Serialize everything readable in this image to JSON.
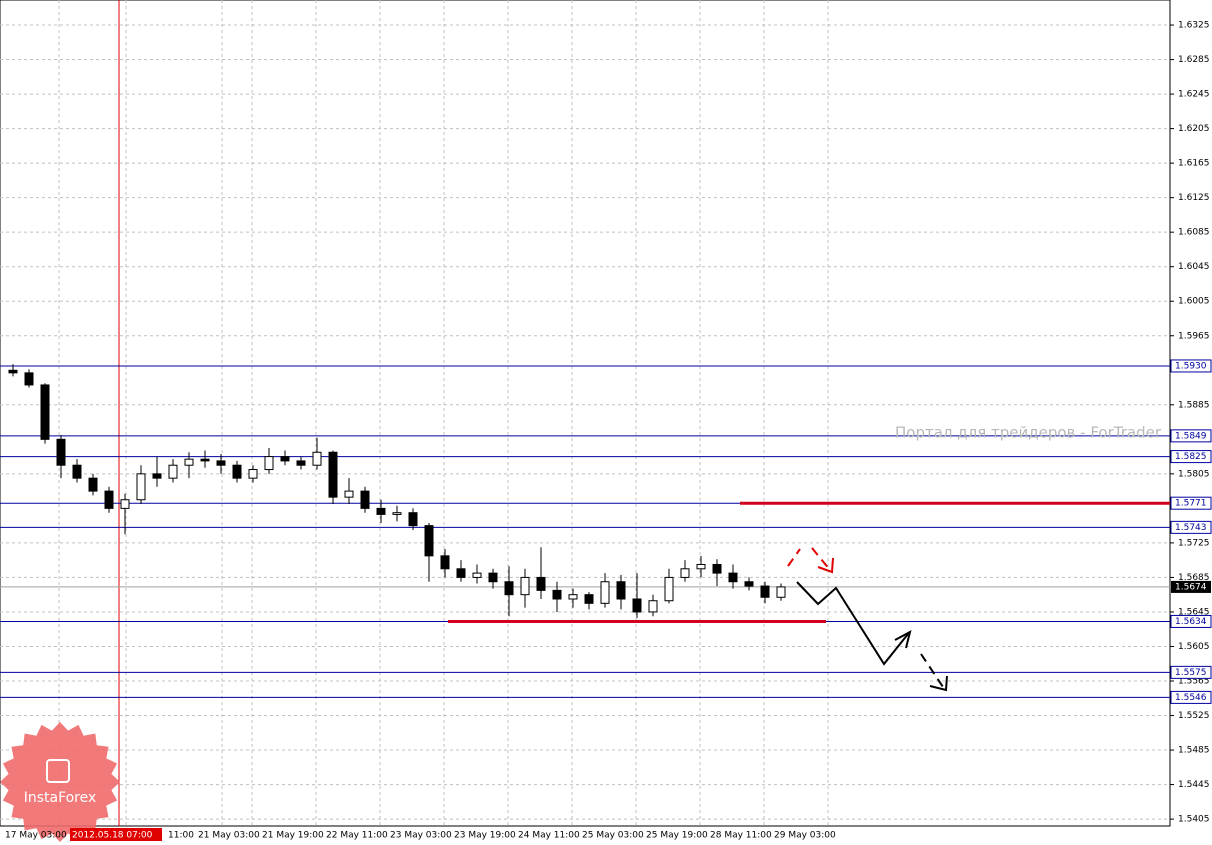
{
  "chart_data": {
    "type": "candlestick",
    "ylim": [
      1.5397,
      1.6354
    ],
    "yticks": [
      1.6325,
      1.6285,
      1.6245,
      1.6205,
      1.6165,
      1.6125,
      1.6085,
      1.6045,
      1.6005,
      1.5965,
      1.5885,
      1.5805,
      1.5725,
      1.5685,
      1.5645,
      1.5605,
      1.5565,
      1.5525,
      1.5485,
      1.5445,
      1.5405
    ],
    "grid": true,
    "x_labels": [
      "17 May 03:00",
      "2012.05.18 07:00",
      "11:00",
      "21 May 03:00",
      "21 May 19:00",
      "22 May 11:00",
      "23 May 03:00",
      "23 May 19:00",
      "24 May 11:00",
      "25 May 03:00",
      "25 May 19:00",
      "28 May 11:00",
      "29 May 03:00"
    ],
    "candles": [
      [
        1.5925,
        1.5932,
        1.5918,
        1.5922
      ],
      [
        1.5922,
        1.5926,
        1.5905,
        1.5908
      ],
      [
        1.5908,
        1.591,
        1.584,
        1.5845
      ],
      [
        1.5845,
        1.585,
        1.58,
        1.5815
      ],
      [
        1.5815,
        1.5822,
        1.5795,
        1.58
      ],
      [
        1.58,
        1.5805,
        1.578,
        1.5785
      ],
      [
        1.5785,
        1.579,
        1.576,
        1.5765
      ],
      [
        1.5765,
        1.5782,
        1.5735,
        1.5775
      ],
      [
        1.5775,
        1.5815,
        1.577,
        1.5805
      ],
      [
        1.5805,
        1.5825,
        1.579,
        1.58
      ],
      [
        1.58,
        1.5822,
        1.5795,
        1.5815
      ],
      [
        1.5815,
        1.583,
        1.58,
        1.5822
      ],
      [
        1.5822,
        1.5832,
        1.5812,
        1.582
      ],
      [
        1.582,
        1.5828,
        1.5805,
        1.5815
      ],
      [
        1.5815,
        1.582,
        1.5795,
        1.58
      ],
      [
        1.58,
        1.5815,
        1.5795,
        1.581
      ],
      [
        1.581,
        1.5835,
        1.5805,
        1.5825
      ],
      [
        1.5825,
        1.5832,
        1.5815,
        1.582
      ],
      [
        1.582,
        1.5825,
        1.581,
        1.5815
      ],
      [
        1.5815,
        1.5847,
        1.581,
        1.583
      ],
      [
        1.583,
        1.5832,
        1.577,
        1.5778
      ],
      [
        1.5778,
        1.58,
        1.577,
        1.5785
      ],
      [
        1.5785,
        1.579,
        1.576,
        1.5765
      ],
      [
        1.5765,
        1.5775,
        1.5748,
        1.5758
      ],
      [
        1.5758,
        1.5768,
        1.575,
        1.576
      ],
      [
        1.576,
        1.5765,
        1.574,
        1.5745
      ],
      [
        1.5745,
        1.5748,
        1.568,
        1.571
      ],
      [
        1.571,
        1.5718,
        1.5685,
        1.5695
      ],
      [
        1.5695,
        1.5705,
        1.568,
        1.5685
      ],
      [
        1.5685,
        1.57,
        1.5678,
        1.569
      ],
      [
        1.569,
        1.5695,
        1.5672,
        1.568
      ],
      [
        1.568,
        1.5698,
        1.564,
        1.5665
      ],
      [
        1.5665,
        1.5695,
        1.565,
        1.5685
      ],
      [
        1.5685,
        1.572,
        1.566,
        1.567
      ],
      [
        1.567,
        1.568,
        1.5645,
        1.566
      ],
      [
        1.566,
        1.5672,
        1.565,
        1.5665
      ],
      [
        1.5665,
        1.5668,
        1.5648,
        1.5655
      ],
      [
        1.5655,
        1.569,
        1.565,
        1.568
      ],
      [
        1.568,
        1.5688,
        1.5648,
        1.566
      ],
      [
        1.566,
        1.569,
        1.5638,
        1.5645
      ],
      [
        1.5645,
        1.5665,
        1.564,
        1.5658
      ],
      [
        1.5658,
        1.5695,
        1.5655,
        1.5685
      ],
      [
        1.5685,
        1.5705,
        1.568,
        1.5695
      ],
      [
        1.5695,
        1.571,
        1.5685,
        1.57
      ],
      [
        1.57,
        1.5706,
        1.5675,
        1.569
      ],
      [
        1.569,
        1.57,
        1.5672,
        1.568
      ],
      [
        1.568,
        1.5685,
        1.567,
        1.5675
      ],
      [
        1.5675,
        1.568,
        1.5655,
        1.5662
      ],
      [
        1.5662,
        1.5678,
        1.5658,
        1.5674
      ]
    ],
    "levels": [
      {
        "value": 1.593,
        "label": "1.5930"
      },
      {
        "value": 1.5849,
        "label": "1.5849"
      },
      {
        "value": 1.5825,
        "label": "1.5825"
      },
      {
        "value": 1.5771,
        "label": "1.5771"
      },
      {
        "value": 1.5743,
        "label": "1.5743"
      },
      {
        "value": 1.5634,
        "label": "1.5634"
      },
      {
        "value": 1.5575,
        "label": "1.5575"
      },
      {
        "value": 1.5546,
        "label": "1.5546"
      }
    ],
    "current_price": {
      "value": 1.5674,
      "label": "1.5674"
    },
    "watermark": "Портал для трейдеров - ForTrader",
    "logo": "InstaForex"
  }
}
